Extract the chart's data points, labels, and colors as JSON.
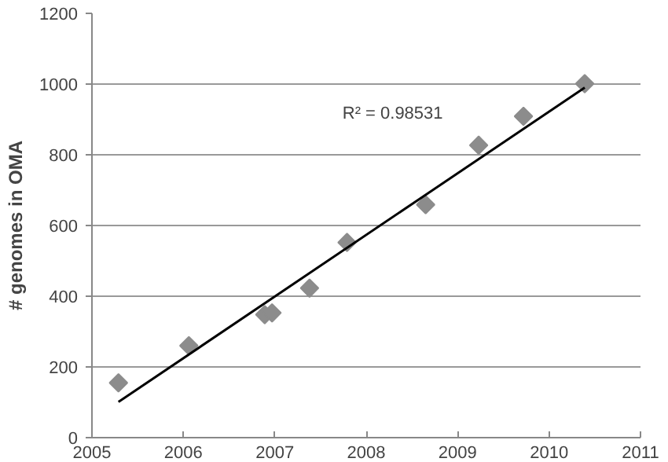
{
  "chart_data": {
    "type": "scatter",
    "ylabel": "# genomes in OMA",
    "xlim": [
      2005,
      2011
    ],
    "ylim": [
      0,
      1200
    ],
    "xticks": [
      2005,
      2006,
      2007,
      2008,
      2009,
      2010,
      2011
    ],
    "yticks": [
      0,
      200,
      400,
      600,
      800,
      1000,
      1200
    ],
    "grid": "y",
    "series": [
      {
        "marker": "diamond",
        "color": "#8c8c8c",
        "x": [
          2005.29,
          2006.06,
          2006.89,
          2006.97,
          2007.38,
          2007.79,
          2008.65,
          2009.23,
          2009.72,
          2010.39
        ],
        "values": [
          155,
          260,
          348,
          353,
          423,
          552,
          659,
          827,
          909,
          1001
        ]
      },
      {
        "type": "line",
        "color": "#000000",
        "x": [
          2005.29,
          2010.39
        ],
        "values": [
          101,
          990
        ]
      }
    ],
    "annotations": [
      "R² = 0.98531"
    ]
  }
}
